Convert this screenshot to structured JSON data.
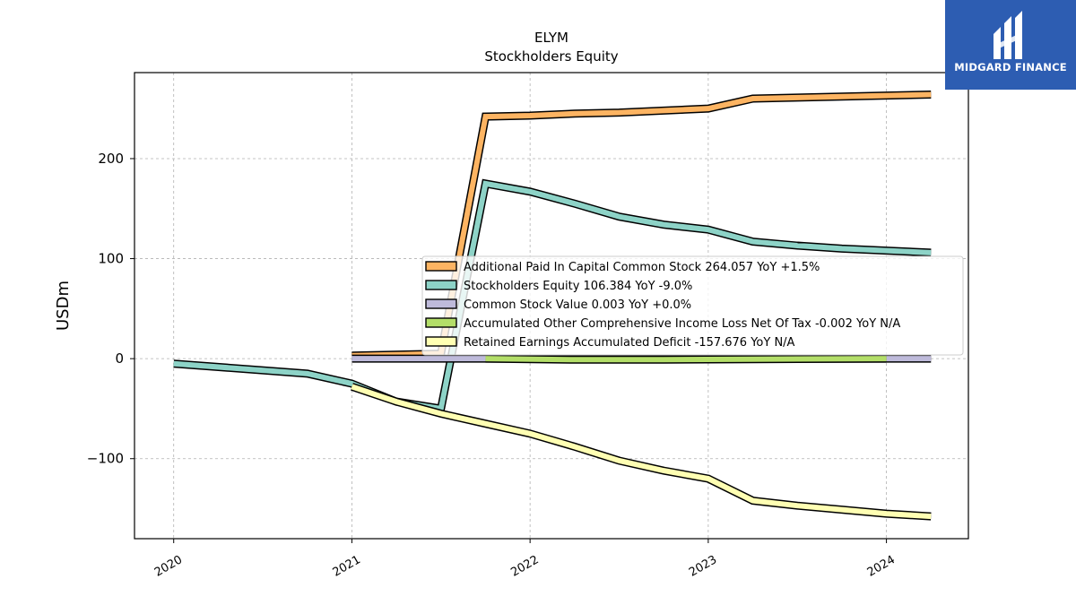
{
  "logo": {
    "text": "MIDGARD FINANCE"
  },
  "chart_data": {
    "type": "line",
    "title": "ELYM",
    "subtitle": "Stockholders  Equity",
    "ylabel": "USDm",
    "xlabel": "",
    "xlim": [
      2019.78,
      2024.46
    ],
    "ylim": [
      -180,
      286
    ],
    "xticks": [
      {
        "value": 2020,
        "label": "2020"
      },
      {
        "value": 2021,
        "label": "2021"
      },
      {
        "value": 2022,
        "label": "2022"
      },
      {
        "value": 2023,
        "label": "2023"
      },
      {
        "value": 2024,
        "label": "2024"
      }
    ],
    "yticks": [
      {
        "value": -100,
        "label": "−100"
      },
      {
        "value": 0,
        "label": "0"
      },
      {
        "value": 100,
        "label": "100"
      },
      {
        "value": 200,
        "label": "200"
      }
    ],
    "grid": true,
    "legend_position": "center-right",
    "series": [
      {
        "name": "Additional Paid In Capital Common Stock  264.057 YoY +1.5%",
        "color": "#fdb462",
        "x": [
          2021.0,
          2021.5,
          2021.75,
          2022.0,
          2022.25,
          2022.5,
          2022.75,
          2023.0,
          2023.25,
          2023.5,
          2023.75,
          2024.0,
          2024.25
        ],
        "y": [
          3,
          5,
          242,
          243,
          245,
          246,
          248,
          250,
          260,
          261,
          262,
          263,
          264
        ]
      },
      {
        "name": "Stockholders Equity  106.384 YoY -9.0%",
        "color": "#8dd3c7",
        "x": [
          2020.0,
          2020.75,
          2021.0,
          2021.25,
          2021.5,
          2021.75,
          2022.0,
          2022.25,
          2022.5,
          2022.75,
          2023.0,
          2023.25,
          2023.5,
          2023.75,
          2024.0,
          2024.25
        ],
        "y": [
          -5,
          -15,
          -25,
          -43,
          -50,
          175,
          167,
          155,
          142,
          134,
          129,
          117,
          113,
          110,
          108,
          106
        ]
      },
      {
        "name": "Common Stock Value  0.003 YoY +0.0%",
        "color": "#bebada",
        "x": [
          2021.0,
          2024.25
        ],
        "y": [
          0,
          0
        ]
      },
      {
        "name": "Accumulated Other Comprehensive Income Loss Net Of Tax  -0.002 YoY N/A",
        "color": "#b3de69",
        "x": [
          2021.75,
          2022.25,
          2022.75,
          2023.25,
          2024.0
        ],
        "y": [
          0,
          -1,
          -1,
          -0.5,
          -0.002
        ]
      },
      {
        "name": "Retained Earnings Accumulated Deficit  -157.676 YoY N/A",
        "color": "#ffffb3",
        "x": [
          2021.0,
          2021.25,
          2021.5,
          2021.75,
          2022.0,
          2022.25,
          2022.5,
          2022.75,
          2023.0,
          2023.25,
          2023.5,
          2023.75,
          2024.0,
          2024.25
        ],
        "y": [
          -28,
          -43,
          -55,
          -65,
          -75,
          -88,
          -102,
          -112,
          -120,
          -142,
          -147,
          -151,
          -155,
          -157.676
        ]
      }
    ]
  }
}
